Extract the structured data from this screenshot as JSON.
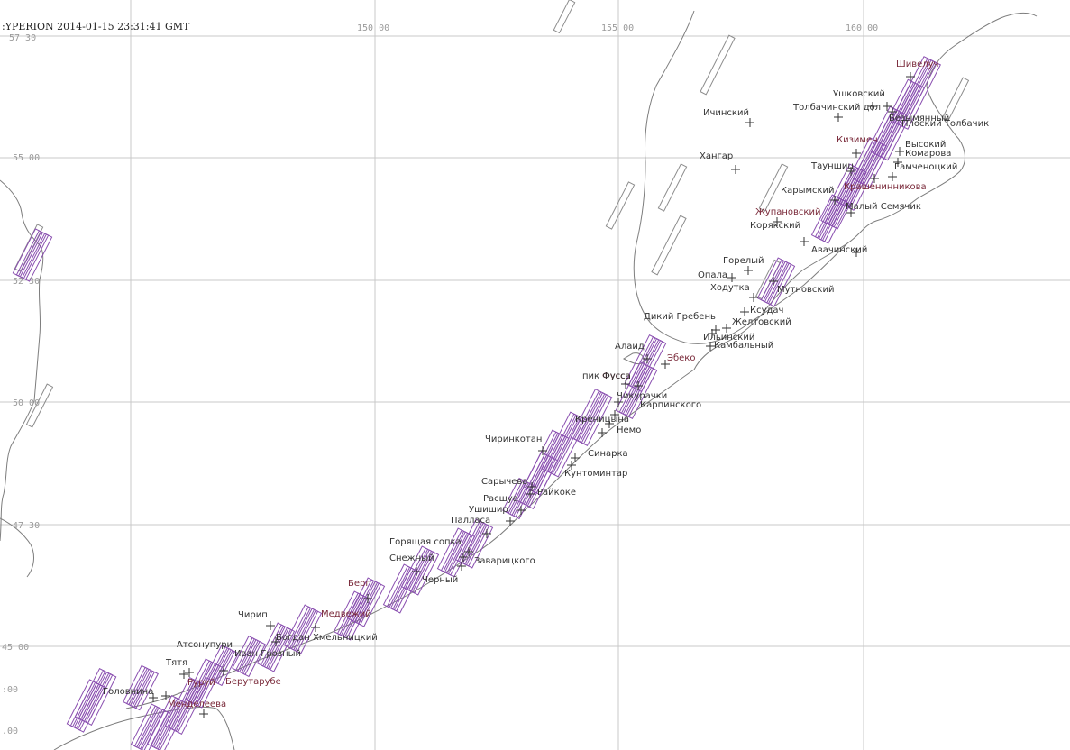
{
  "header": {
    "title": ":YPERION 2014-01-15 23:31:41 GMT"
  },
  "ticks": {
    "lon": [
      "150 00",
      "155 00",
      "160 00"
    ],
    "lat": [
      "57 30",
      "55 00",
      "52 30",
      "50 00",
      "47 30",
      "45 00",
      ":00",
      ".00"
    ]
  },
  "colors": {
    "swath_primary": "#8a4fb0",
    "swath_secondary": "#8c8c8c",
    "label_highlight": "#7a2a3a",
    "label_normal": "#333333",
    "grid": "#c9c9c9",
    "coast": "#7d7d7d"
  },
  "volcanoes": [
    {
      "name": "Шивелуч",
      "highlight": true
    },
    {
      "name": "Ушковский",
      "highlight": false
    },
    {
      "name": "Безымянный",
      "highlight": false
    },
    {
      "name": "Толбачинский дол",
      "highlight": false
    },
    {
      "name": "Плоский Толбачик",
      "highlight": false
    },
    {
      "name": "Ичинский",
      "highlight": false
    },
    {
      "name": "Кизимен",
      "highlight": true
    },
    {
      "name": "Высокий",
      "highlight": false
    },
    {
      "name": "Комарова",
      "highlight": false
    },
    {
      "name": "Хангар",
      "highlight": false
    },
    {
      "name": "Тауншиц",
      "highlight": false
    },
    {
      "name": "Гамченоцкий",
      "highlight": false
    },
    {
      "name": "Карымский",
      "highlight": false
    },
    {
      "name": "Крашенинникова",
      "highlight": true
    },
    {
      "name": "Малый Семячик",
      "highlight": false
    },
    {
      "name": "Жупановский",
      "highlight": true
    },
    {
      "name": "Корякский",
      "highlight": false
    },
    {
      "name": "Авачинский",
      "highlight": false
    },
    {
      "name": "Горелый",
      "highlight": false
    },
    {
      "name": "Опала",
      "highlight": false
    },
    {
      "name": "Ходутка",
      "highlight": false
    },
    {
      "name": "Мутновский",
      "highlight": false
    },
    {
      "name": "Ксудач",
      "highlight": false
    },
    {
      "name": "Дикий Гребень",
      "highlight": false
    },
    {
      "name": "Желтовский",
      "highlight": false
    },
    {
      "name": "Ильинский",
      "highlight": false
    },
    {
      "name": "Камбальный",
      "highlight": false
    },
    {
      "name": "Алаид",
      "highlight": false
    },
    {
      "name": "Эбеко",
      "highlight": true
    },
    {
      "name": "Фусса",
      "highlight": true
    },
    {
      "name": "пик Фусса",
      "highlight": false
    },
    {
      "name": "Чикурачки",
      "highlight": false
    },
    {
      "name": "Карпинского",
      "highlight": false
    },
    {
      "name": "Креницына",
      "highlight": false
    },
    {
      "name": "Немо",
      "highlight": false
    },
    {
      "name": "Чиринкотан",
      "highlight": false
    },
    {
      "name": "Синарка",
      "highlight": false
    },
    {
      "name": "Кунтоминтар",
      "highlight": false
    },
    {
      "name": "Сарычева",
      "highlight": false
    },
    {
      "name": "Райкоке",
      "highlight": false
    },
    {
      "name": "Расшуа",
      "highlight": false
    },
    {
      "name": "Ушишир",
      "highlight": false
    },
    {
      "name": "Палласа",
      "highlight": false
    },
    {
      "name": "Горящая сопка",
      "highlight": false
    },
    {
      "name": "Снежный",
      "highlight": false
    },
    {
      "name": "Черный",
      "highlight": false
    },
    {
      "name": "Заварицкого",
      "highlight": false
    },
    {
      "name": "Берг",
      "highlight": true
    },
    {
      "name": "Медвежий",
      "highlight": true
    },
    {
      "name": "Чирип",
      "highlight": false
    },
    {
      "name": "Богдан Хмельницкий",
      "highlight": false
    },
    {
      "name": "Атсонупури",
      "highlight": false
    },
    {
      "name": "Иван Грозный",
      "highlight": false
    },
    {
      "name": "Тятя",
      "highlight": false
    },
    {
      "name": "Руруй",
      "highlight": true
    },
    {
      "name": "Берутарубе",
      "highlight": true
    },
    {
      "name": "Головнина",
      "highlight": false
    },
    {
      "name": "Менделеева",
      "highlight": true
    }
  ]
}
